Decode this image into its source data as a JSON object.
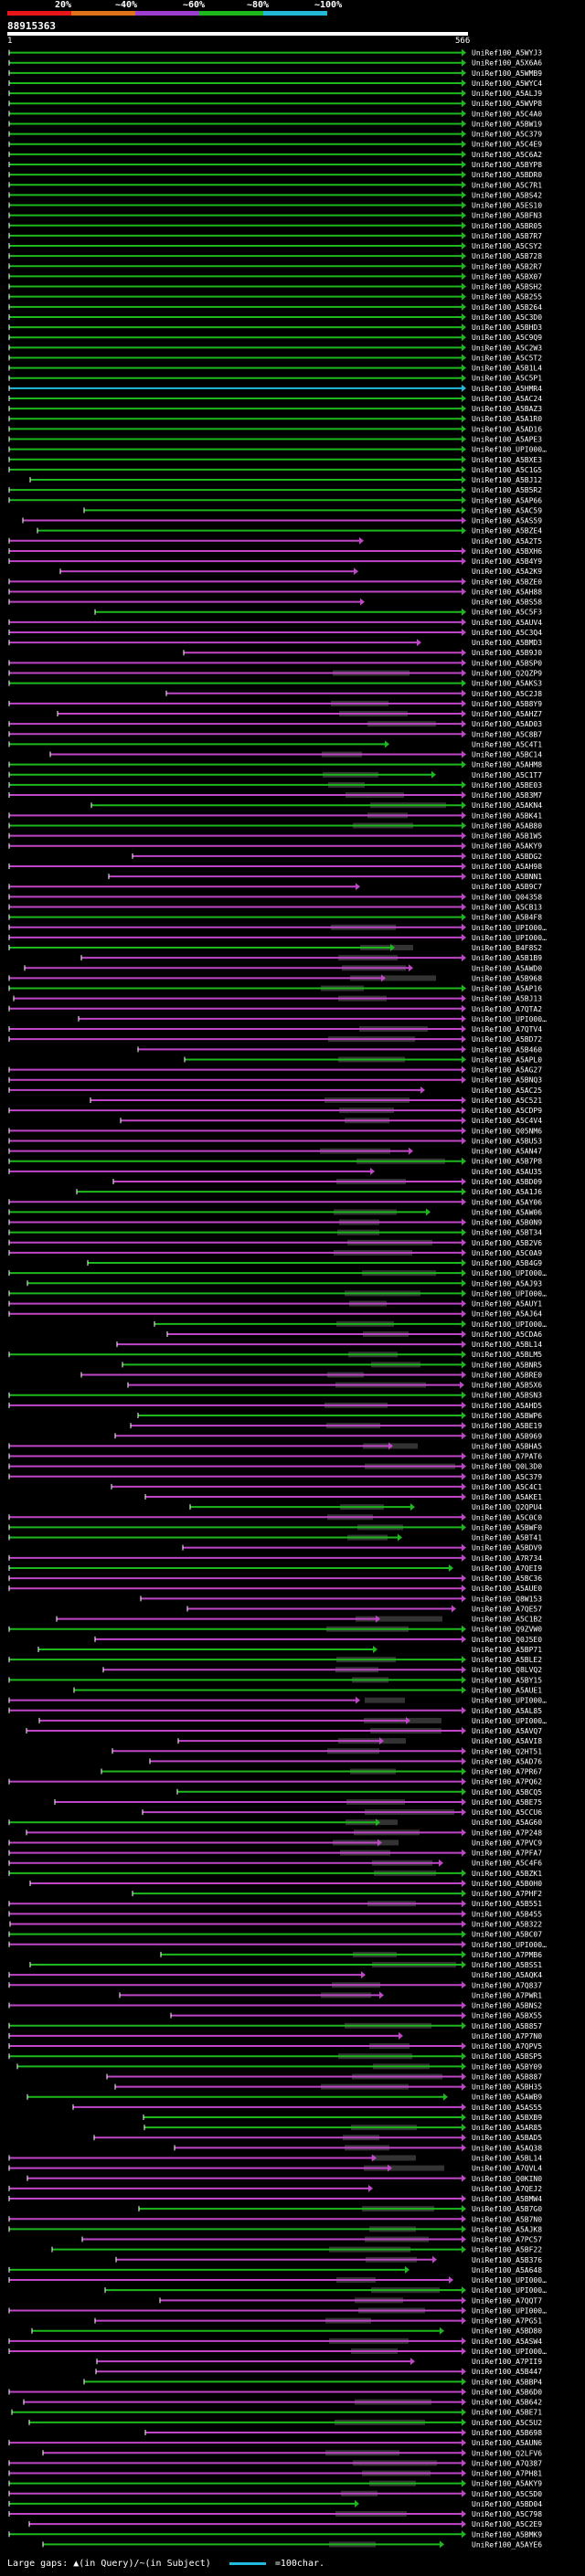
{
  "legend": {
    "ticks": [
      "20%",
      "~40%",
      "~60%",
      "~80%",
      "~100%"
    ],
    "colors": [
      "#e8161b",
      "#e0731a",
      "#9b3fd0",
      "#1db81d",
      "#22b8d6"
    ]
  },
  "query": {
    "id": "88915363",
    "start": "1",
    "end": "566"
  },
  "colors": {
    "green": "#1db81d",
    "magenta": "#c046c8",
    "cyan": "#22bbdd",
    "gap": "#333333"
  },
  "hits": [
    "UniRef100_A5WYJ3",
    "UniRef100_A5X6A6",
    "UniRef100_A5WMB9",
    "UniRef100_A5WYC4",
    "UniRef100_A5ALJ9",
    "UniRef100_A5WVP8",
    "UniRef100_A5C4A0",
    "UniRef100_A5BW19",
    "UniRef100_A5C379",
    "UniRef100_A5C4E9",
    "UniRef100_A5C6A2",
    "UniRef100_A5BYP8",
    "UniRef100_A5BDR0",
    "UniRef100_A5C7R1",
    "UniRef100_A5BS42",
    "UniRef100_A5ES10",
    "UniRef100_A5BFN3",
    "UniRef100_A5BR05",
    "UniRef100_A5B7R7",
    "UniRef100_A5CSY2",
    "UniRef100_A5B728",
    "UniRef100_A5B2R7",
    "UniRef100_A5BX07",
    "UniRef100_A5BSH2",
    "UniRef100_A5B255",
    "UniRef100_A5B264",
    "UniRef100_A5C3D0",
    "UniRef100_A5BHD3",
    "UniRef100_A5C9Q9",
    "UniRef100_A5C2W3",
    "UniRef100_A5C5T2",
    "UniRef100_A5B1L4",
    "UniRef100_A5C5P1",
    "UniRef100_A5HMR4",
    "UniRef100_A5AC24",
    "UniRef100_A5BAZ3",
    "UniRef100_A5A1R0",
    "UniRef100_A5AD16",
    "UniRef100_A5APE3",
    "UniRef100_UPI000…",
    "UniRef100_A5BXE3",
    "UniRef100_A5C1G5",
    "UniRef100_A5BJ12",
    "UniRef100_A5B5R2",
    "UniRef100_A5AP66",
    "UniRef100_A5AC59",
    "UniRef100_A5AS59",
    "UniRef100_A5BZE4",
    "UniRef100_A5A2T5",
    "UniRef100_A5BXH6",
    "UniRef100_A5B4Y9",
    "UniRef100_A5A2K9",
    "UniRef100_A5BZE0",
    "UniRef100_A5AH88",
    "UniRef100_A5BS58",
    "UniRef100_A5C5F3",
    "UniRef100_A5AUV4",
    "UniRef100_A5C3Q4",
    "UniRef100_A5BMD3",
    "UniRef100_A5B9J0",
    "UniRef100_A5BSP0",
    "UniRef100_Q2QZP9",
    "UniRef100_A5AKS3",
    "UniRef100_A5C2J8",
    "UniRef100_A5B8Y9",
    "UniRef100_A5AHZ7",
    "UniRef100_A5AD03",
    "UniRef100_A5C8B7",
    "UniRef100_A5C4T1",
    "UniRef100_A5BC14",
    "UniRef100_A5AHM8",
    "UniRef100_A5C1T7",
    "UniRef100_A5BE03",
    "UniRef100_A5B3M7",
    "UniRef100_A5AKN4",
    "UniRef100_A5BK41",
    "UniRef100_A5AB80",
    "UniRef100_A5B1W5",
    "UniRef100_A5AKY9",
    "UniRef100_A5BDG2",
    "UniRef100_A5AH98",
    "UniRef100_A5BNN1",
    "UniRef100_A5B9C7",
    "UniRef100_Q04358",
    "UniRef100_A5CB13",
    "UniRef100_A5B4F8",
    "UniRef100_UPI000…",
    "UniRef100_UPI000…",
    "UniRef100_B4F8S2",
    "UniRef100_A5B1B9",
    "UniRef100_A5AWD0",
    "UniRef100_A5B968",
    "UniRef100_A5AP16",
    "UniRef100_A5BJ13",
    "UniRef100_A7QTA2",
    "UniRef100_UPI000…",
    "UniRef100_A7QTV4",
    "UniRef100_A5BD72",
    "UniRef100_A5B460",
    "UniRef100_A5APL0",
    "UniRef100_A5AG27",
    "UniRef100_A5BNQ3",
    "UniRef100_A5AC25",
    "UniRef100_A5C521",
    "UniRef100_A5CDP9",
    "UniRef100_A5C4V4",
    "UniRef100_Q05NM6",
    "UniRef100_A5BU53",
    "UniRef100_A5AN47",
    "UniRef100_A5B7P8",
    "UniRef100_A5AU35",
    "UniRef100_A5BD09",
    "UniRef100_A5A1J6",
    "UniRef100_A5AY06",
    "UniRef100_A5AW06",
    "UniRef100_A5B0N9",
    "UniRef100_A5BT34",
    "UniRef100_A5B2V6",
    "UniRef100_A5C0A9",
    "UniRef100_A5B4G9",
    "UniRef100_UPI000…",
    "UniRef100_A5AJ93",
    "UniRef100_UPI000…",
    "UniRef100_A5AUY1",
    "UniRef100_A5AJ64",
    "UniRef100_UPI000…",
    "UniRef100_A5CDA6",
    "UniRef100_A5BL14",
    "UniRef100_A5BLM5",
    "UniRef100_A5BNR5",
    "UniRef100_A5BRE0",
    "UniRef100_A5B5X6",
    "UniRef100_A5BSN3",
    "UniRef100_A5AHD5",
    "UniRef100_A5BWP6",
    "UniRef100_A5BE19",
    "UniRef100_A5B969",
    "UniRef100_A5BHA5",
    "UniRef100_A7PAT6",
    "UniRef100_Q0L3D0",
    "UniRef100_A5C379",
    "UniRef100_A5C4C1",
    "UniRef100_A5AKE1",
    "UniRef100_Q2QPU4",
    "UniRef100_A5C0C0",
    "UniRef100_A5BWF0",
    "UniRef100_A5BT41",
    "UniRef100_A5BDV9",
    "UniRef100_A7R734",
    "UniRef100_A7QEI9",
    "UniRef100_A5BC36",
    "UniRef100_A5AUE0",
    "UniRef100_Q8W153",
    "UniRef100_A7QE57",
    "UniRef100_A5C1B2",
    "UniRef100_Q9ZVW0",
    "UniRef100_Q0J5E0",
    "UniRef100_A5BP71",
    "UniRef100_A5BLE2",
    "UniRef100_Q8LVQ2",
    "UniRef100_A5BY15",
    "UniRef100_A5AUE1",
    "UniRef100_UPI000…",
    "UniRef100_A5AL85",
    "UniRef100_UPI000…",
    "UniRef100_A5AVQ7",
    "UniRef100_A5AVI8",
    "UniRef100_Q2HT51",
    "UniRef100_A5AD76",
    "UniRef100_A7PR67",
    "UniRef100_A7PQ62",
    "UniRef100_A5BCQ5",
    "UniRef100_A5BE75",
    "UniRef100_A5CCU6",
    "UniRef100_A5AG60",
    "UniRef100_A7P248",
    "UniRef100_A7PVC9",
    "UniRef100_A7PFA7",
    "UniRef100_A5C4F6",
    "UniRef100_A5BZK1",
    "UniRef100_A5B0H0",
    "UniRef100_A7PHF2",
    "UniRef100_A5B551",
    "UniRef100_A5B455",
    "UniRef100_A5B322",
    "UniRef100_A5BC07",
    "UniRef100_UPI000…",
    "UniRef100_A7PMB6",
    "UniRef100_A5BSS1",
    "UniRef100_A5AQK4",
    "UniRef100_A7Q837",
    "UniRef100_A7PWR1",
    "UniRef100_A5BNS2",
    "UniRef100_A5BX55",
    "UniRef100_A5B857",
    "UniRef100_A7P7N0",
    "UniRef100_A7QPV5",
    "UniRef100_A5BSP5",
    "UniRef100_A5BY09",
    "UniRef100_A5B887",
    "UniRef100_A5BH35",
    "UniRef100_A5AWB9",
    "UniRef100_A5AS55",
    "UniRef100_A5BXB9",
    "UniRef100_A5AR85",
    "UniRef100_A5BAD5",
    "UniRef100_A5AQ38",
    "UniRef100_A5BL14",
    "UniRef100_A7QVL4",
    "UniRef100_Q0KIN0",
    "UniRef100_A7QEJ2",
    "UniRef100_A5BMW4",
    "UniRef100_A5B7G0",
    "UniRef100_A5B7N0",
    "UniRef100_A5AJK8",
    "UniRef100_A7PC57",
    "UniRef100_A5BF22",
    "UniRef100_A5B376",
    "UniRef100_A5A648",
    "UniRef100_UPI000…",
    "UniRef100_UPI000…",
    "UniRef100_A7QQT7",
    "UniRef100_UPI000…",
    "UniRef100_A7PG51",
    "UniRef100_A5BD80",
    "UniRef100_A5ASW4",
    "UniRef100_UPI000…",
    "UniRef100_A7PII9",
    "UniRef100_A5B447",
    "UniRef100_A5BBP4",
    "UniRef100_A5B6D0",
    "UniRef100_A5B642",
    "UniRef100_A5BE71",
    "UniRef100_A5C5U2",
    "UniRef100_A5B698",
    "UniRef100_A5AUN6",
    "UniRef100_Q2LFV6",
    "UniRef100_A7Q387",
    "UniRef100_A7PH81",
    "UniRef100_A5AKY9",
    "UniRef100_A5C5D0",
    "UniRef100_A5BD04",
    "UniRef100_A5C798",
    "UniRef100_A5C2E9",
    "UniRef100_A5BMK9",
    "UniRef100_A5AYE6"
  ],
  "footer": {
    "text": "Large gaps: ▲(in Query)/~(in Subject)",
    "scale_text": "=100char."
  }
}
